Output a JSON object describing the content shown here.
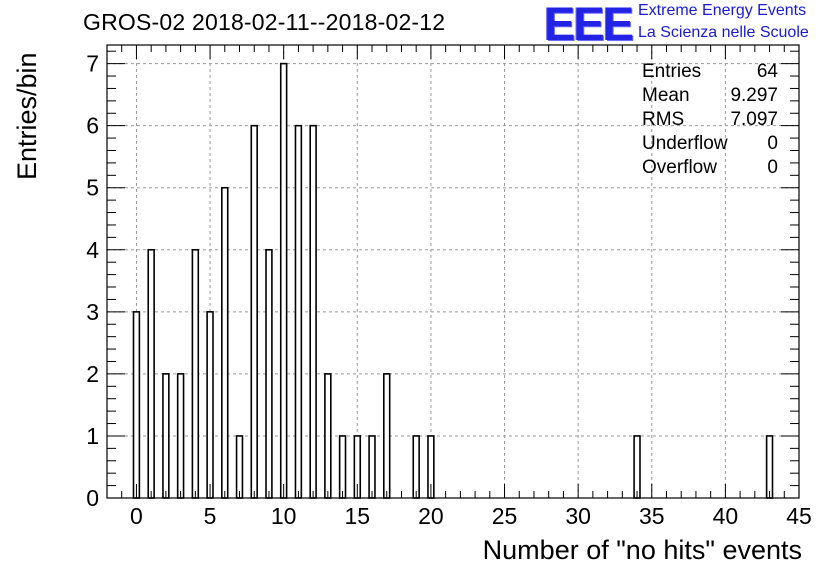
{
  "title": "GROS-02 2018-02-11--2018-02-12",
  "logo": {
    "mark": "EEE",
    "line1": "Extreme Energy Events",
    "line2": "La Scienza nelle Scuole",
    "color": "#2323e6"
  },
  "stats": [
    {
      "label": "Entries",
      "value": "64"
    },
    {
      "label": "Mean",
      "value": "9.297"
    },
    {
      "label": "RMS",
      "value": "7.097"
    },
    {
      "label": "Underflow",
      "value": "0"
    },
    {
      "label": "Overflow",
      "value": "0"
    }
  ],
  "chart_data": {
    "type": "bar",
    "title": "GROS-02 2018-02-11--2018-02-12",
    "xlabel": "Number of \"no hits\" events",
    "ylabel": "Entries/bin",
    "xlim": [
      -2,
      45
    ],
    "ylim": [
      0,
      7.3
    ],
    "grid": true,
    "bin_width": 1,
    "bin_centers": [
      0,
      1,
      2,
      3,
      4,
      5,
      6,
      7,
      8,
      9,
      10,
      11,
      12,
      13,
      14,
      15,
      16,
      17,
      18,
      19,
      20,
      21,
      22,
      23,
      24,
      25,
      26,
      27,
      28,
      29,
      30,
      31,
      32,
      33,
      34,
      35,
      36,
      37,
      38,
      39,
      40,
      41,
      42,
      43,
      44
    ],
    "values": [
      3,
      4,
      2,
      2,
      4,
      3,
      5,
      1,
      6,
      4,
      7,
      6,
      6,
      2,
      1,
      1,
      1,
      2,
      0,
      1,
      1,
      0,
      0,
      0,
      0,
      0,
      0,
      0,
      0,
      0,
      0,
      0,
      0,
      0,
      1,
      0,
      0,
      0,
      0,
      0,
      0,
      0,
      0,
      1,
      0
    ],
    "xticks": [
      0,
      5,
      10,
      15,
      20,
      25,
      30,
      35,
      40,
      45
    ],
    "yticks": [
      0,
      1,
      2,
      3,
      4,
      5,
      6,
      7
    ]
  }
}
